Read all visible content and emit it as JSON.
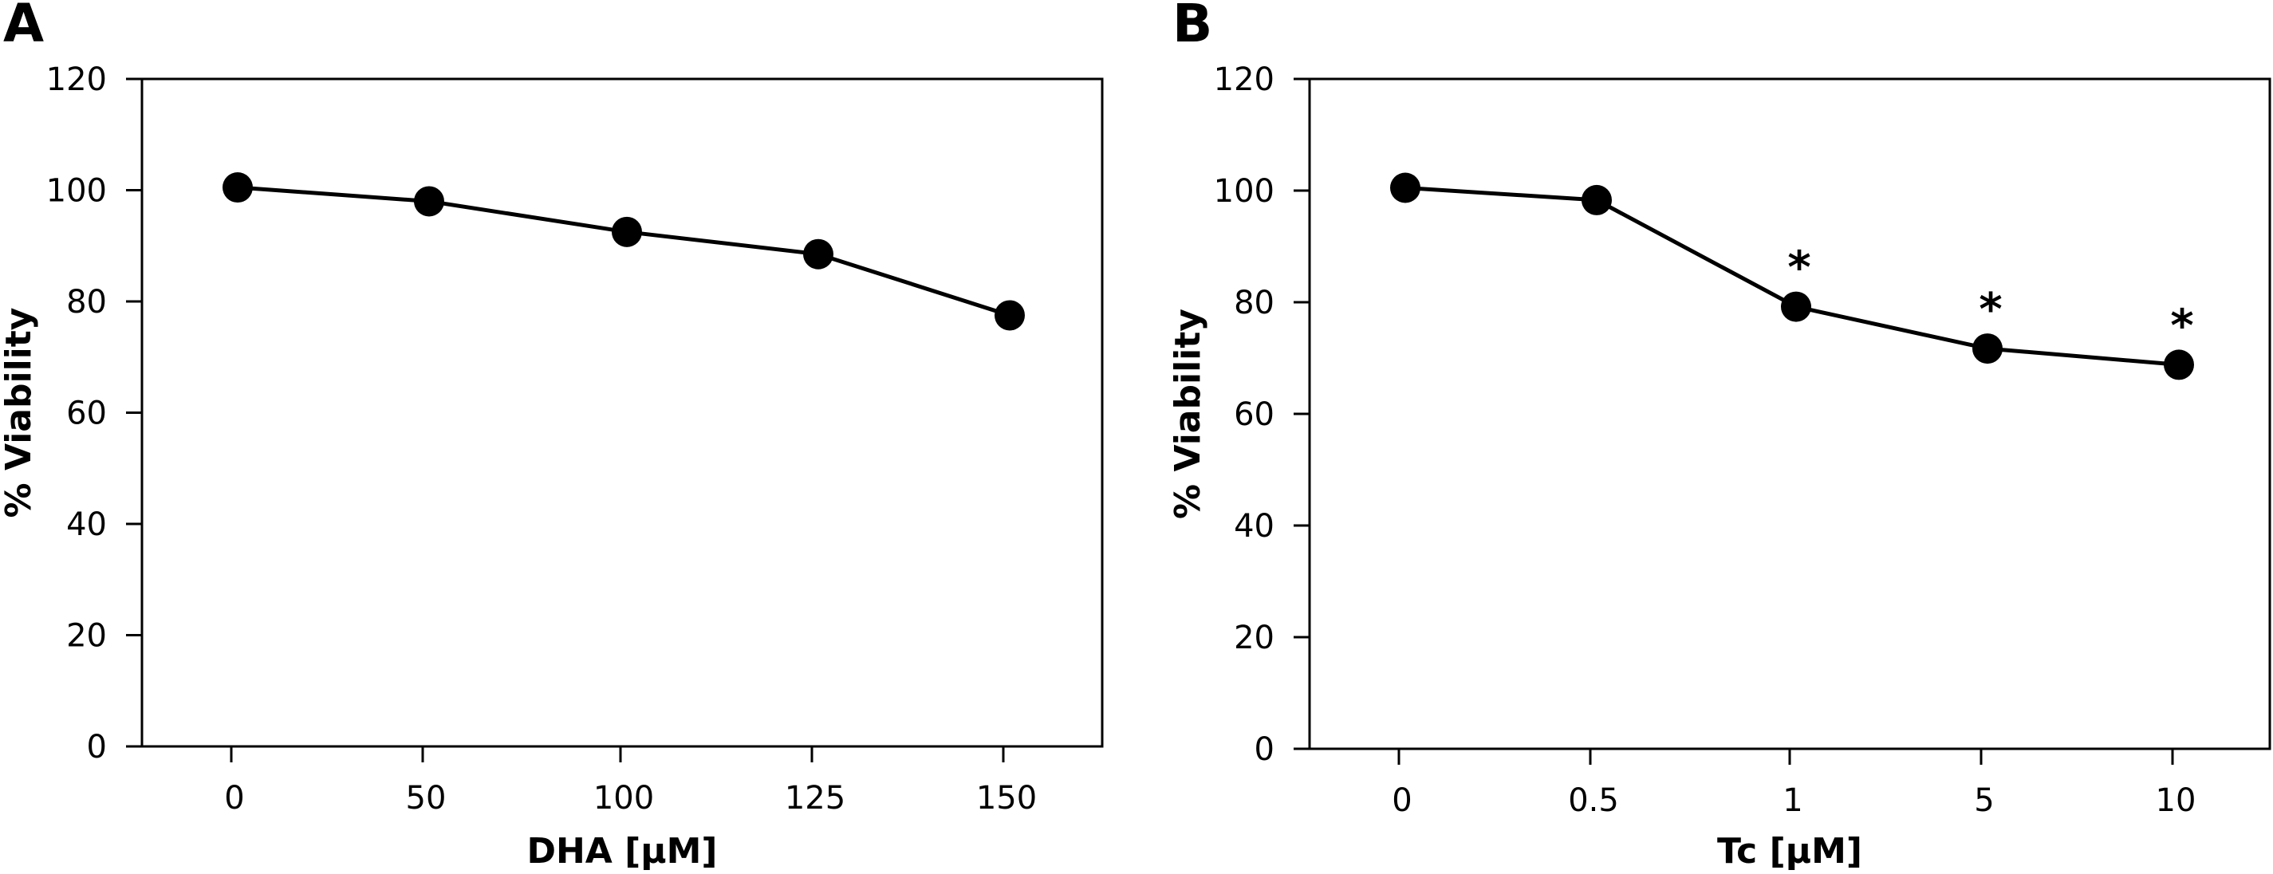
{
  "figure": {
    "panels": [
      {
        "letter": "A"
      },
      {
        "letter": "B"
      }
    ]
  },
  "chart_data": [
    {
      "type": "line",
      "panel": "A",
      "title": "",
      "xlabel": "DHA [μM]",
      "ylabel": "% Viability",
      "categories": [
        "0",
        "50",
        "100",
        "125",
        "150"
      ],
      "series": [
        {
          "values": [
            100.5,
            98.0,
            92.5,
            88.5,
            77.5
          ]
        }
      ],
      "significance": [
        "",
        "",
        "",
        "",
        ""
      ],
      "ylim": [
        0,
        120
      ],
      "yticks": [
        0,
        20,
        40,
        60,
        80,
        100,
        120
      ],
      "grid": false,
      "legend": "none",
      "colors": {
        "line": "#000000",
        "marker": "#000000"
      }
    },
    {
      "type": "line",
      "panel": "B",
      "title": "",
      "xlabel": "Tc [μM]",
      "ylabel": "% Viability",
      "categories": [
        "0",
        "0.5",
        "1",
        "5",
        "10"
      ],
      "series": [
        {
          "values": [
            100.5,
            98.3,
            79.2,
            71.7,
            68.8
          ]
        }
      ],
      "significance": [
        "",
        "",
        "*",
        "*",
        "*"
      ],
      "ylim": [
        0,
        120
      ],
      "yticks": [
        0,
        20,
        40,
        60,
        80,
        100,
        120
      ],
      "grid": false,
      "legend": "none",
      "colors": {
        "line": "#000000",
        "marker": "#000000"
      }
    }
  ]
}
